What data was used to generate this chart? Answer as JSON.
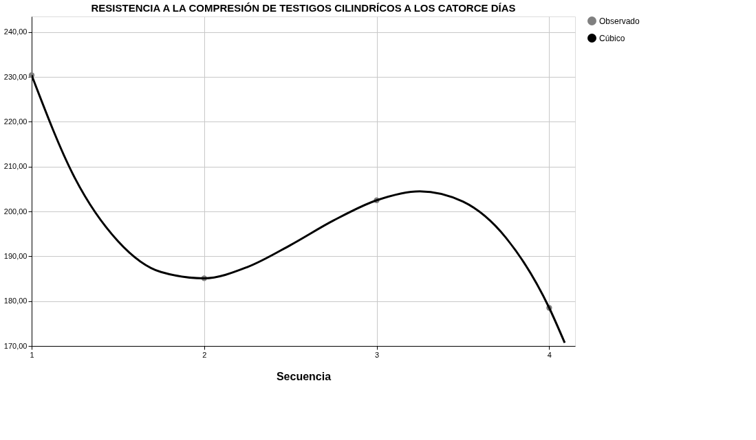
{
  "chart_data": {
    "type": "scatter",
    "title": "RESISTENCIA A LA COMPRESIÓN DE TESTIGOS CILINDRÍCOS A LOS CATORCE DÍAS",
    "xlabel": "Secuencia",
    "xlim": [
      1,
      4.15
    ],
    "xticks": [
      1,
      2,
      3,
      4
    ],
    "ylim": [
      170,
      243.5
    ],
    "yticks": [
      {
        "value": 170,
        "label": "170,00"
      },
      {
        "value": 180,
        "label": "180,00"
      },
      {
        "value": 190,
        "label": "190,00"
      },
      {
        "value": 200,
        "label": "200,00"
      },
      {
        "value": 210,
        "label": "210,00"
      },
      {
        "value": 220,
        "label": "220,00"
      },
      {
        "value": 230,
        "label": "230,00"
      },
      {
        "value": 240,
        "label": "240,00"
      }
    ],
    "grid": true,
    "legend": "top right",
    "series": [
      {
        "name": "Observado",
        "marker": "circle",
        "color": "#808080",
        "x": [
          1,
          2,
          3,
          4
        ],
        "values": [
          230.4,
          185.1,
          202.5,
          178.5
        ]
      },
      {
        "name": "Cúbico",
        "type": "line",
        "line_style": "solid",
        "marker": "none",
        "color": "#000000",
        "x": [
          1,
          1.25,
          1.5,
          1.75,
          2,
          2.25,
          2.5,
          2.75,
          3,
          3.25,
          3.5,
          3.75,
          4,
          4.09
        ],
        "values": [
          230.4,
          207.5,
          193.4,
          186.5,
          185.1,
          187.6,
          192.5,
          198.0,
          202.5,
          204.5,
          202.2,
          194.1,
          178.5,
          170.7
        ]
      }
    ]
  }
}
